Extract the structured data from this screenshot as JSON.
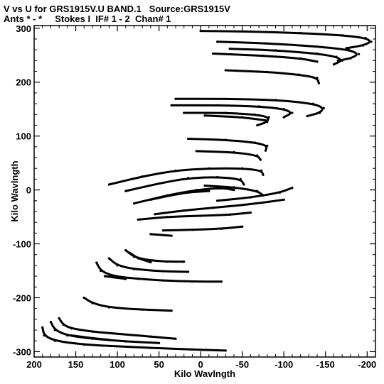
{
  "header": {
    "line1": "V vs U for GRS1915V.U BAND.1   Source:GRS1915V",
    "line2": "Ants * - *     Stokes I  IF# 1 - 2  Chan# 1"
  },
  "chart_data": {
    "type": "scatter",
    "title": "V vs U for GRS1915V.U BAND.1   Source:GRS1915V",
    "subtitle": "Ants * - *     Stokes I  IF# 1 - 2  Chan# 1",
    "xlabel": "Kilo Wavlngth",
    "ylabel": "Kilo Wavlngth",
    "xlim": [
      200,
      -210
    ],
    "ylim": [
      -310,
      305
    ],
    "x_reversed": true,
    "x_ticks": [
      200,
      150,
      100,
      50,
      0,
      -50,
      -100,
      -150,
      -200
    ],
    "y_ticks": [
      300,
      200,
      100,
      0,
      -100,
      -200,
      -300
    ],
    "grid": false,
    "mark_color": "#000000",
    "series": [
      {
        "points": [
          [
            0,
            295
          ],
          [
            -60,
            294
          ],
          [
            -120,
            291
          ],
          [
            -170,
            287
          ],
          [
            -198,
            282
          ],
          [
            -205,
            275
          ],
          [
            -195,
            268
          ],
          [
            -175,
            263
          ]
        ]
      },
      {
        "points": [
          [
            -20,
            275
          ],
          [
            -80,
            272
          ],
          [
            -140,
            266
          ],
          [
            -178,
            260
          ],
          [
            -190,
            252
          ],
          [
            -180,
            244
          ],
          [
            -165,
            240
          ]
        ]
      },
      {
        "points": [
          [
            -35,
            262
          ],
          [
            -90,
            259
          ],
          [
            -140,
            253
          ],
          [
            -163,
            247
          ],
          [
            -170,
            240
          ],
          [
            -160,
            233
          ]
        ]
      },
      {
        "points": [
          [
            -15,
            253
          ],
          [
            -75,
            249
          ],
          [
            -120,
            244
          ],
          [
            -140,
            238
          ]
        ]
      },
      {
        "points": [
          [
            -30,
            222
          ],
          [
            -80,
            219
          ],
          [
            -118,
            214
          ],
          [
            -140,
            208
          ],
          [
            -142,
            198
          ]
        ]
      },
      {
        "points": [
          [
            30,
            169
          ],
          [
            -30,
            169
          ],
          [
            -90,
            167
          ],
          [
            -135,
            160
          ],
          [
            -148,
            152
          ],
          [
            -143,
            143
          ],
          [
            -128,
            137
          ]
        ]
      },
      {
        "points": [
          [
            35,
            157
          ],
          [
            -20,
            157
          ],
          [
            -70,
            155
          ],
          [
            -100,
            150
          ],
          [
            -110,
            143
          ],
          [
            -100,
            135
          ]
        ]
      },
      {
        "points": [
          [
            20,
            143
          ],
          [
            -30,
            143
          ],
          [
            -65,
            140
          ],
          [
            -82,
            135
          ],
          [
            -80,
            126
          ],
          [
            -68,
            120
          ]
        ]
      },
      {
        "points": [
          [
            -5,
            138
          ],
          [
            -50,
            135
          ],
          [
            -78,
            129
          ]
        ]
      },
      {
        "points": [
          [
            15,
            95
          ],
          [
            -30,
            93
          ],
          [
            -65,
            88
          ],
          [
            -80,
            82
          ],
          [
            -78,
            73
          ]
        ]
      },
      {
        "points": [
          [
            5,
            72
          ],
          [
            -40,
            70
          ],
          [
            -68,
            64
          ],
          [
            -72,
            56
          ]
        ]
      },
      {
        "points": [
          [
            110,
            10
          ],
          [
            70,
            25
          ],
          [
            30,
            36
          ],
          [
            -10,
            40
          ],
          [
            -50,
            40
          ],
          [
            -73,
            36
          ],
          [
            -75,
            28
          ]
        ]
      },
      {
        "points": [
          [
            90,
            -2
          ],
          [
            50,
            12
          ],
          [
            15,
            22
          ],
          [
            -20,
            24
          ],
          [
            -48,
            20
          ],
          [
            -52,
            10
          ]
        ]
      },
      {
        "points": [
          [
            80,
            -25
          ],
          [
            40,
            -10
          ],
          [
            5,
            0
          ],
          [
            -25,
            4
          ],
          [
            -40,
            0
          ]
        ]
      },
      {
        "points": [
          [
            60,
            -18
          ],
          [
            20,
            -5
          ],
          [
            -10,
            -2
          ]
        ]
      },
      {
        "points": [
          [
            -5,
            8
          ],
          [
            -40,
            5
          ],
          [
            -68,
            -2
          ],
          [
            -75,
            -10
          ]
        ]
      },
      {
        "points": [
          [
            -20,
            -20
          ],
          [
            -60,
            -14
          ],
          [
            -95,
            -5
          ],
          [
            -110,
            4
          ]
        ]
      },
      {
        "points": [
          [
            55,
            -45
          ],
          [
            20,
            -38
          ],
          [
            -15,
            -33
          ],
          [
            -50,
            -28
          ],
          [
            -82,
            -22
          ],
          [
            -100,
            -18
          ]
        ]
      },
      {
        "points": [
          [
            75,
            -55
          ],
          [
            40,
            -50
          ],
          [
            0,
            -48
          ],
          [
            -35,
            -46
          ],
          [
            -60,
            -42
          ]
        ]
      },
      {
        "points": [
          [
            45,
            -75
          ],
          [
            10,
            -74
          ],
          [
            -25,
            -72
          ],
          [
            -50,
            -68
          ]
        ]
      },
      {
        "points": [
          [
            60,
            -82
          ],
          [
            35,
            -85
          ]
        ]
      },
      {
        "points": [
          [
            90,
            -112
          ],
          [
            80,
            -124
          ],
          [
            65,
            -130
          ],
          [
            40,
            -133
          ],
          [
            20,
            -133
          ]
        ]
      },
      {
        "points": [
          [
            85,
            -117
          ],
          [
            75,
            -127
          ],
          [
            60,
            -134
          ]
        ]
      },
      {
        "points": [
          [
            110,
            -127
          ],
          [
            100,
            -140
          ],
          [
            80,
            -147
          ],
          [
            45,
            -151
          ],
          [
            15,
            -152
          ]
        ]
      },
      {
        "points": [
          [
            125,
            -135
          ],
          [
            120,
            -150
          ],
          [
            105,
            -160
          ],
          [
            75,
            -165
          ],
          [
            45,
            -168
          ],
          [
            10,
            -170
          ],
          [
            -25,
            -170
          ]
        ]
      },
      {
        "points": [
          [
            115,
            -160
          ],
          [
            100,
            -163
          ],
          [
            90,
            -165
          ]
        ]
      },
      {
        "points": [
          [
            140,
            -200
          ],
          [
            130,
            -210
          ],
          [
            110,
            -218
          ],
          [
            70,
            -222
          ],
          [
            35,
            -224
          ]
        ]
      },
      {
        "points": [
          [
            170,
            -238
          ],
          [
            165,
            -250
          ],
          [
            155,
            -257
          ],
          [
            130,
            -263
          ],
          [
            100,
            -267
          ],
          [
            60,
            -272
          ],
          [
            30,
            -276
          ]
        ]
      },
      {
        "points": [
          [
            180,
            -245
          ],
          [
            175,
            -260
          ],
          [
            160,
            -270
          ],
          [
            130,
            -276
          ],
          [
            90,
            -281
          ],
          [
            50,
            -284
          ]
        ]
      },
      {
        "points": [
          [
            190,
            -255
          ],
          [
            188,
            -270
          ],
          [
            175,
            -280
          ],
          [
            140,
            -287
          ],
          [
            100,
            -290
          ],
          [
            60,
            -293
          ],
          [
            10,
            -296
          ],
          [
            -30,
            -298
          ]
        ]
      },
      {
        "points": [
          [
            155,
            -270
          ],
          [
            130,
            -275
          ],
          [
            110,
            -278
          ]
        ]
      }
    ]
  }
}
